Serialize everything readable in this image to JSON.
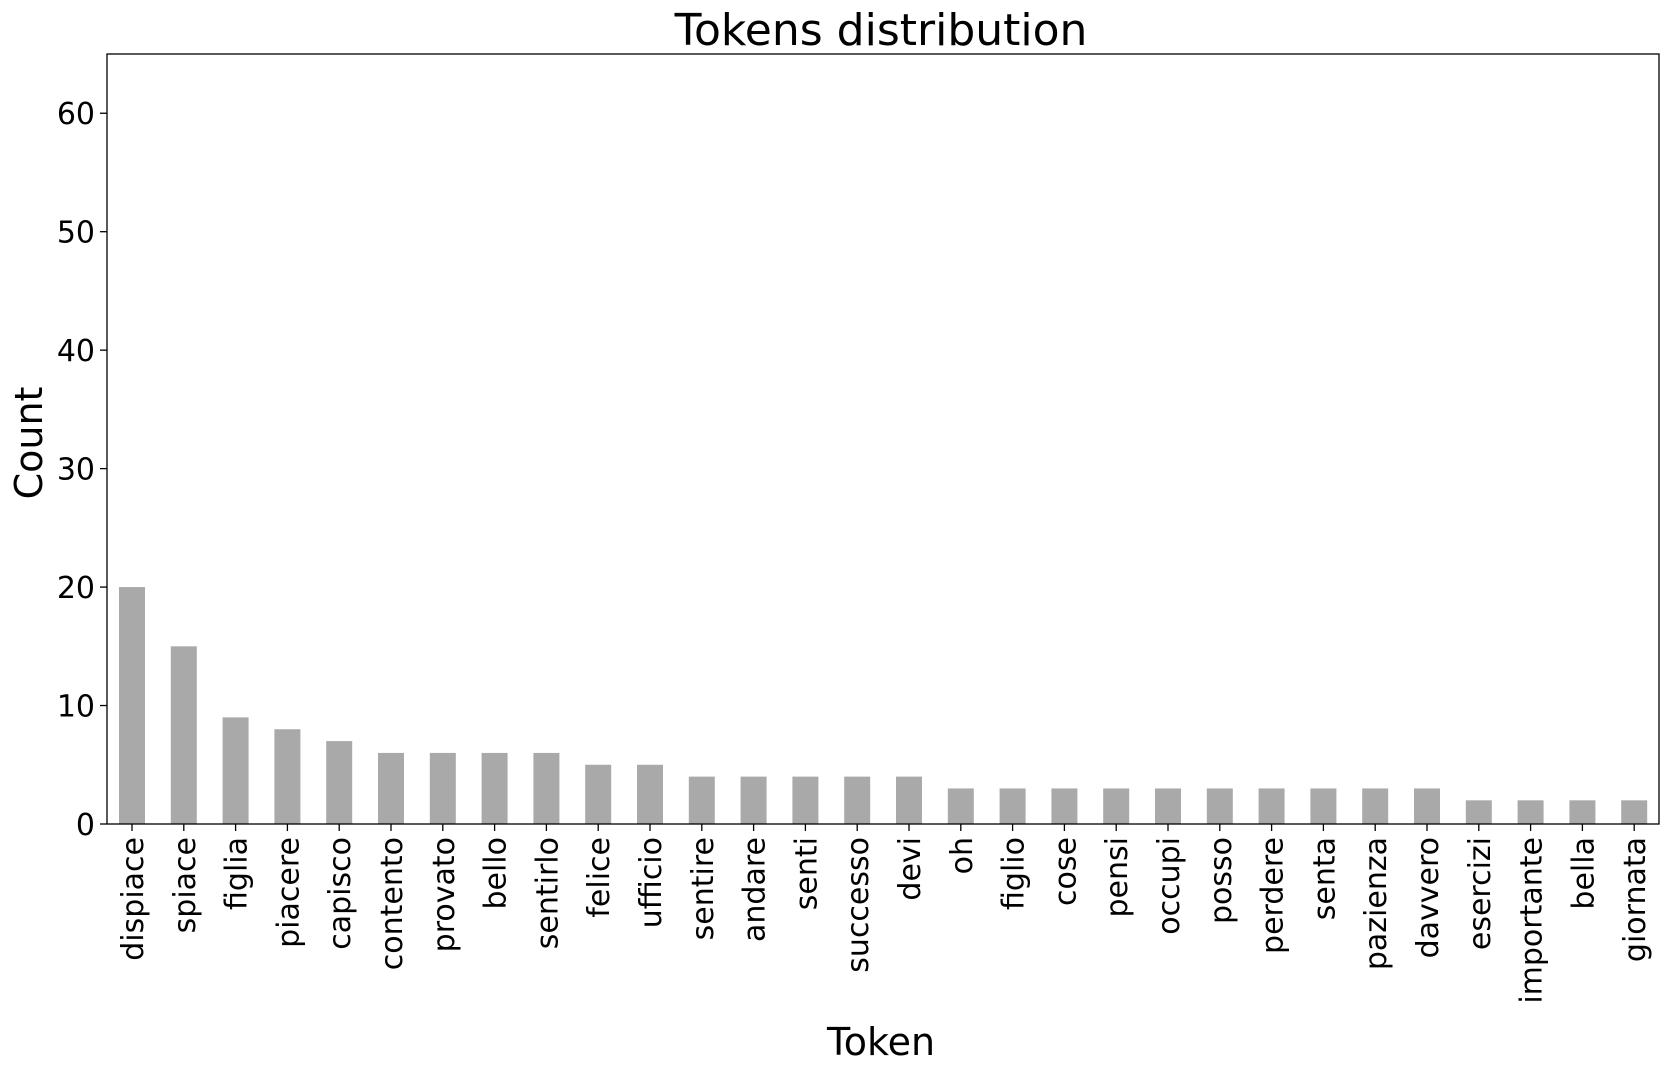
{
  "chart_data": {
    "type": "bar",
    "title": "Tokens distribution",
    "xlabel": "Token",
    "ylabel": "Count",
    "ylim": [
      0,
      65
    ],
    "yticks": [
      0,
      10,
      20,
      30,
      40,
      50,
      60
    ],
    "grid": false,
    "bar_color": "#a9a9a9",
    "categories": [
      "dispiace",
      "spiace",
      "figlia",
      "piacere",
      "capisco",
      "contento",
      "provato",
      "bello",
      "sentirlo",
      "felice",
      "ufficio",
      "sentire",
      "andare",
      "senti",
      "successo",
      "devi",
      "oh",
      "figlio",
      "cose",
      "pensi",
      "occupi",
      "posso",
      "perdere",
      "senta",
      "pazienza",
      "davvero",
      "esercizi",
      "importante",
      "bella",
      "giornata"
    ],
    "values": [
      20,
      15,
      9,
      8,
      7,
      6,
      6,
      6,
      6,
      5,
      5,
      4,
      4,
      4,
      4,
      4,
      3,
      3,
      3,
      3,
      3,
      3,
      3,
      3,
      3,
      3,
      2,
      2,
      2,
      2
    ]
  }
}
